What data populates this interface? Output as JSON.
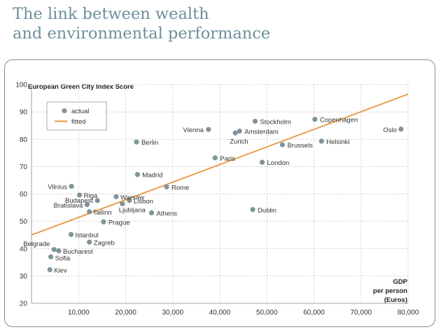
{
  "title": {
    "line1": "The link between wealth",
    "line2": "and environmental performance"
  },
  "colors": {
    "title": "#6d8f9a",
    "point": "#7f939c",
    "fitted": "#e8953f",
    "grid": "#aaaaaa"
  },
  "chart_data": {
    "type": "scatter",
    "ylabel": "European Green City Index Score",
    "xlabel": [
      "GDP",
      "per person",
      "(Euros)"
    ],
    "xlim": [
      0,
      80000
    ],
    "ylim": [
      20,
      100
    ],
    "x_ticks": [
      0,
      10000,
      20000,
      30000,
      40000,
      50000,
      60000,
      70000,
      80000
    ],
    "x_tick_labels": [
      "",
      "10,000",
      "20,000",
      "30,000",
      "40,000",
      "50,000",
      "60,000",
      "70,000",
      "80,000"
    ],
    "y_ticks": [
      20,
      30,
      40,
      50,
      60,
      70,
      80,
      90,
      100
    ],
    "y_tick_labels": [
      "20",
      "30",
      "40",
      "50",
      "60",
      "70",
      "80",
      "90",
      "100"
    ],
    "grid": "dotted",
    "legend": {
      "placement": "top-left",
      "actual": "actual",
      "fitted": "fitted"
    },
    "fitted_line": {
      "x": [
        0,
        80000
      ],
      "y": [
        45,
        96.5
      ]
    },
    "points": [
      {
        "city": "Oslo",
        "x": 78500,
        "y": 83.7
      },
      {
        "city": "Copenhagen",
        "x": 60200,
        "y": 87.3
      },
      {
        "city": "Helsinki",
        "x": 61600,
        "y": 79.3
      },
      {
        "city": "Stockholm",
        "x": 47500,
        "y": 86.6
      },
      {
        "city": "Amsterdam",
        "x": 44200,
        "y": 83.0
      },
      {
        "city": "Zurich",
        "x": 43300,
        "y": 82.3
      },
      {
        "city": "Vienna",
        "x": 37600,
        "y": 83.6
      },
      {
        "city": "Brussels",
        "x": 53300,
        "y": 78.0
      },
      {
        "city": "London",
        "x": 49000,
        "y": 71.6
      },
      {
        "city": "Dublin",
        "x": 47000,
        "y": 54.3
      },
      {
        "city": "Paris",
        "x": 39000,
        "y": 73.2
      },
      {
        "city": "Berlin",
        "x": 22300,
        "y": 79.0
      },
      {
        "city": "Madrid",
        "x": 22500,
        "y": 67.1
      },
      {
        "city": "Rome",
        "x": 28700,
        "y": 62.6
      },
      {
        "city": "Athens",
        "x": 25500,
        "y": 53.1
      },
      {
        "city": "Lisbon",
        "x": 20800,
        "y": 57.6
      },
      {
        "city": "Ljubljana",
        "x": 19300,
        "y": 56.4
      },
      {
        "city": "Warsaw",
        "x": 18000,
        "y": 59.0
      },
      {
        "city": "Prague",
        "x": 15300,
        "y": 49.8
      },
      {
        "city": "Budapest",
        "x": 14000,
        "y": 57.6
      },
      {
        "city": "Bratislava",
        "x": 11800,
        "y": 56.1
      },
      {
        "city": "Tallinn",
        "x": 12300,
        "y": 53.5
      },
      {
        "city": "Riga",
        "x": 10200,
        "y": 59.6
      },
      {
        "city": "Vilnius",
        "x": 8500,
        "y": 62.8
      },
      {
        "city": "Zagreb",
        "x": 12300,
        "y": 42.4
      },
      {
        "city": "Istanbul",
        "x": 8400,
        "y": 45.2
      },
      {
        "city": "Belgrade",
        "x": 4800,
        "y": 39.7
      },
      {
        "city": "Bucharest",
        "x": 5800,
        "y": 39.2
      },
      {
        "city": "Sofia",
        "x": 4100,
        "y": 37.0
      },
      {
        "city": "Kiev",
        "x": 3900,
        "y": 32.3
      }
    ]
  }
}
